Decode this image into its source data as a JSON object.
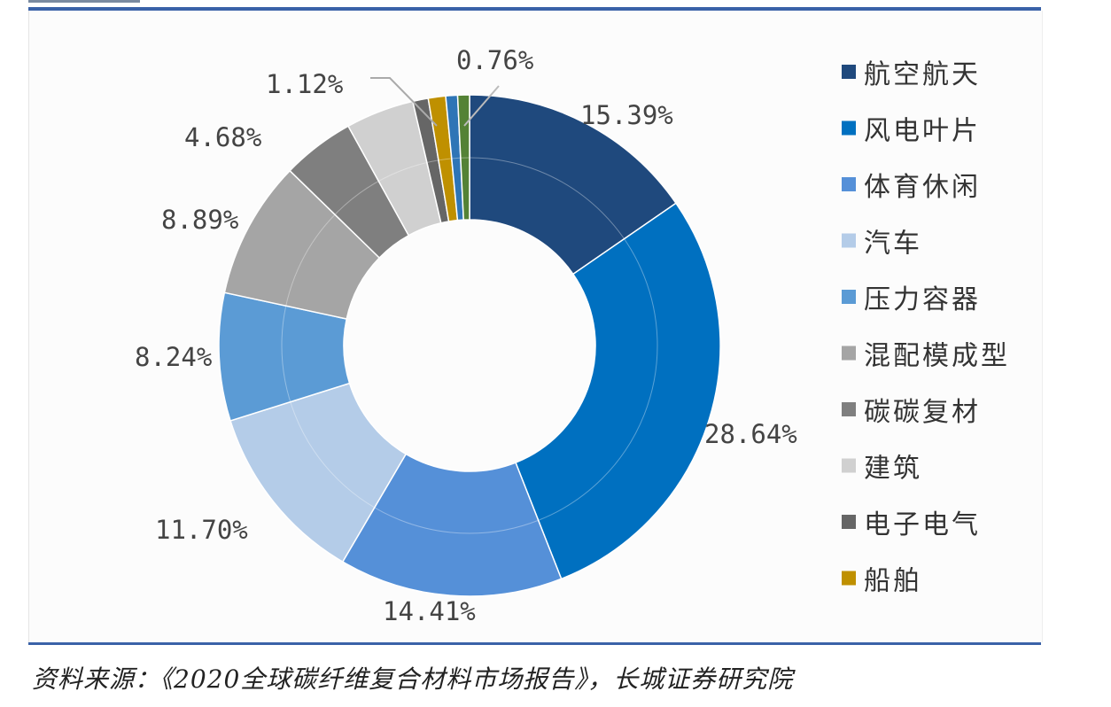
{
  "chart_data": {
    "type": "pie",
    "donut": true,
    "slices": [
      {
        "name": "航空航天",
        "value": 15.39,
        "label": "15.39%",
        "color": "#1f497d"
      },
      {
        "name": "风电叶片",
        "value": 28.64,
        "label": "28.64%",
        "color": "#0070c0"
      },
      {
        "name": "体育休闲",
        "value": 14.41,
        "label": "14.41%",
        "color": "#5590d8"
      },
      {
        "name": "汽车",
        "value": 11.7,
        "label": "11.70%",
        "color": "#b4cce8"
      },
      {
        "name": "压力容器",
        "value": 8.24,
        "label": "8.24%",
        "color": "#5b9bd5"
      },
      {
        "name": "混配模成型",
        "value": 8.89,
        "label": "8.89%",
        "color": "#a5a5a5"
      },
      {
        "name": "碳碳复材",
        "value": 4.68,
        "label": "4.68%",
        "color": "#7f7f7f"
      },
      {
        "name": "建筑",
        "value": 4.4,
        "label": null,
        "color": "#d0d0d0"
      },
      {
        "name": "电子电气",
        "value": 1.0,
        "label": null,
        "color": "#666666"
      },
      {
        "name": "船舶",
        "value": 1.12,
        "label": "1.12%",
        "color": "#bf9000"
      },
      {
        "name": null,
        "value": 0.76,
        "label": null,
        "color": "#2e75b6"
      },
      {
        "name": null,
        "value": 0.76,
        "label": "0.76%",
        "color": "#548235"
      }
    ],
    "legend": [
      "航空航天",
      "风电叶片",
      "体育休闲",
      "汽车",
      "压力容器",
      "混配模成型",
      "碳碳复材",
      "建筑",
      "电子电气",
      "船舶"
    ],
    "legend_placement": "right"
  },
  "source": "资料来源：《2020全球碳纤维复合材料市场报告》，长城证券研究院"
}
